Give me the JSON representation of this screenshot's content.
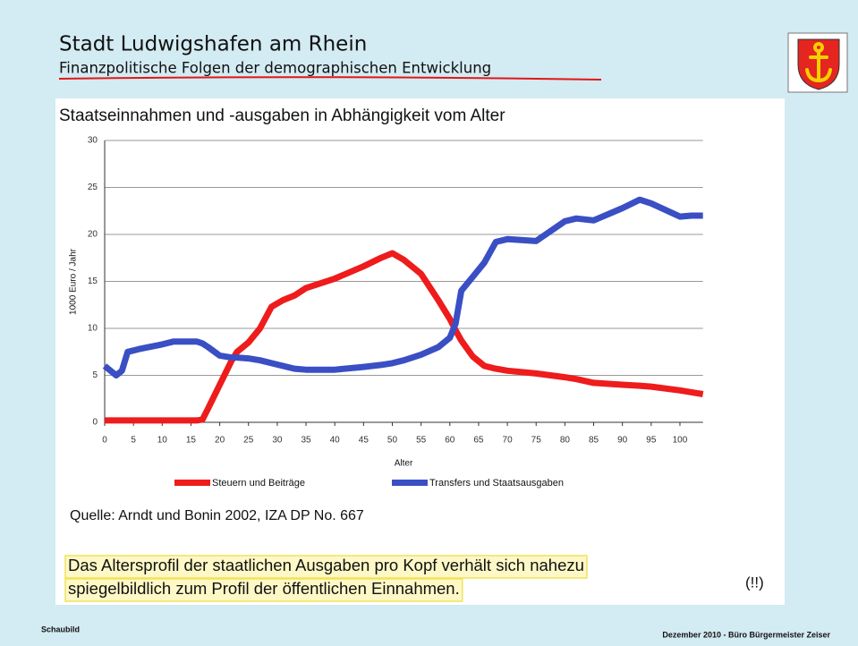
{
  "header": {
    "title": "Stadt Ludwigshafen am Rhein",
    "subtitle": "Finanzpolitische Folgen der demographischen Entwicklung"
  },
  "chart_data": {
    "type": "line",
    "title": "Staatseinnahmen und -ausgaben in Abhängigkeit vom Alter",
    "x_label": "Alter",
    "y_label": "1000 Euro / Jahr",
    "x": [
      0,
      2,
      3,
      4,
      6,
      10,
      12,
      16,
      17,
      18,
      20,
      22,
      23,
      25,
      27,
      29,
      31,
      33,
      35,
      40,
      45,
      48,
      50,
      52,
      55,
      58,
      60,
      61,
      62,
      64,
      66,
      68,
      70,
      75,
      80,
      82,
      85,
      90,
      93,
      95,
      100,
      102,
      104
    ],
    "series": [
      {
        "name": "Steuern und Beiträge",
        "color": "#ee1c1c",
        "values": [
          0.2,
          0.2,
          0.2,
          0.2,
          0.2,
          0.2,
          0.2,
          0.2,
          0.3,
          1.5,
          4,
          6.5,
          7.5,
          8.5,
          10,
          12.3,
          13,
          13.5,
          14.3,
          15.3,
          16.6,
          17.5,
          18,
          17.3,
          15.8,
          13,
          11,
          9.8,
          8.7,
          7,
          6,
          5.7,
          5.5,
          5.2,
          4.8,
          4.6,
          4.2,
          4,
          3.9,
          3.8,
          3.4,
          3.2,
          3
        ]
      },
      {
        "name": "Transfers und Staatsausgaben",
        "color": "#3a4fc4",
        "values": [
          6,
          5,
          5.5,
          7.5,
          7.8,
          8.3,
          8.6,
          8.6,
          8.4,
          8,
          7.1,
          6.9,
          6.9,
          6.8,
          6.6,
          6.3,
          6,
          5.7,
          5.6,
          5.6,
          5.9,
          6.1,
          6.3,
          6.6,
          7.2,
          8,
          9,
          10.5,
          14,
          15.5,
          17,
          19.2,
          19.5,
          19.3,
          21.4,
          21.7,
          21.5,
          22.8,
          23.7,
          23.3,
          21.9,
          22,
          22
        ]
      }
    ],
    "xlim": [
      0,
      104
    ],
    "xticks": [
      0,
      5,
      10,
      15,
      20,
      25,
      30,
      35,
      40,
      45,
      50,
      55,
      60,
      65,
      70,
      75,
      80,
      85,
      90,
      95,
      100
    ],
    "ylim": [
      0,
      30
    ],
    "yticks": [
      0,
      5,
      10,
      15,
      20,
      25,
      30
    ],
    "grid": true
  },
  "source": "Quelle: Arndt und Bonin 2002, IZA DP No. 667",
  "statement": {
    "lines": [
      "Das Altersprofil der staatlichen Ausgaben pro Kopf verhält sich nahezu",
      "spiegelbildlich zum Profil der öffentlichen Einnahmen."
    ],
    "note": "(!!)"
  },
  "footer": {
    "left": "Schaubild",
    "right": "Dezember 2010 - Büro Bürgermeister Zeiser"
  }
}
